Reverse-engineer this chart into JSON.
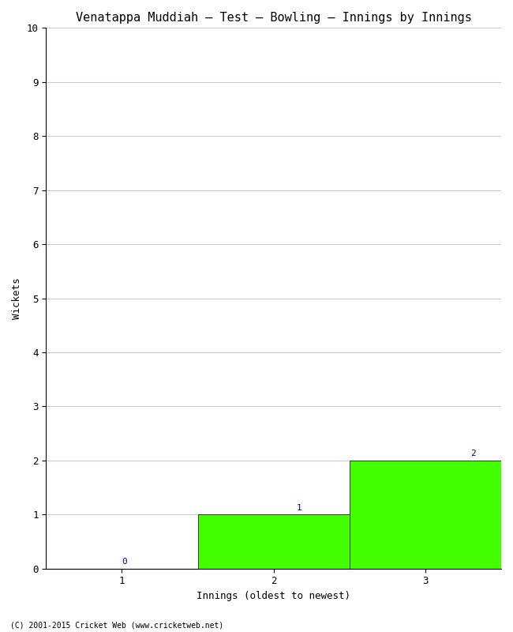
{
  "title": "Venatappa Muddiah – Test – Bowling – Innings by Innings",
  "xlabel": "Innings (oldest to newest)",
  "ylabel": "Wickets",
  "categories": [
    1,
    2,
    3
  ],
  "values": [
    0,
    1,
    2
  ],
  "bar_color": "#44ff00",
  "bar_edge_color": "#000000",
  "ylim": [
    0,
    10
  ],
  "yticks": [
    0,
    1,
    2,
    3,
    4,
    5,
    6,
    7,
    8,
    9,
    10
  ],
  "xticks": [
    1,
    2,
    3
  ],
  "annotation_color": "#0000cc",
  "annotation_fontsize": 8,
  "title_fontsize": 11,
  "label_fontsize": 9,
  "tick_fontsize": 9,
  "footer": "(C) 2001-2015 Cricket Web (www.cricketweb.net)",
  "footer_fontsize": 7,
  "background_color": "#ffffff",
  "grid_color": "#cccccc",
  "xlim": [
    0.5,
    3.5
  ]
}
